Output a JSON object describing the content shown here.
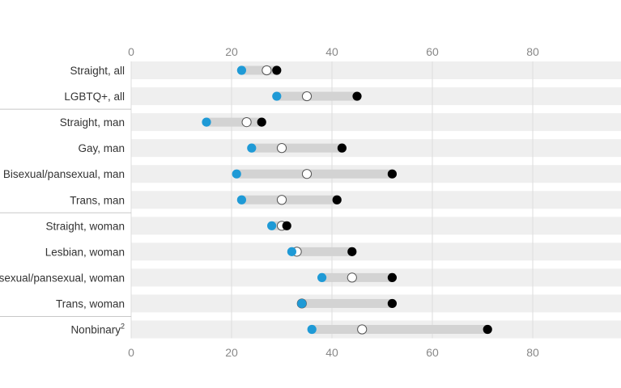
{
  "chart_data": {
    "type": "dot",
    "title": "",
    "xlabel": "",
    "ylabel": "",
    "xlim": [
      0,
      98
    ],
    "x_ticks": [
      0,
      20,
      40,
      60,
      80
    ],
    "grid": true,
    "legend": "none",
    "series_colors": {
      "blue": "#1f9ad6",
      "white": "#ffffff",
      "black": "#000000"
    },
    "categories": [
      {
        "label": "Straight, all",
        "blue": 22,
        "white": 27,
        "black": 29
      },
      {
        "label": "LGBTQ+, all",
        "blue": 29,
        "white": 35,
        "black": 45
      },
      {
        "label": "Straight, man",
        "blue": 15,
        "white": 23,
        "black": 26
      },
      {
        "label": "Gay, man",
        "blue": 24,
        "white": 30,
        "black": 42
      },
      {
        "label": "Bisexual/pansexual, man",
        "blue": 21,
        "white": 35,
        "black": 52
      },
      {
        "label": "Trans, man",
        "blue": 22,
        "white": 30,
        "black": 41
      },
      {
        "label": "Straight, woman",
        "blue": 28,
        "white": 30,
        "black": 31
      },
      {
        "label": "Lesbian, woman",
        "blue": 32,
        "white": 33,
        "black": 44
      },
      {
        "label": "Bisexual/pansexual, woman",
        "blue": 38,
        "white": 44,
        "black": 52
      },
      {
        "label": "Trans, woman",
        "blue": 34,
        "white": 34,
        "black": 52
      },
      {
        "label": "Nonbinary",
        "superscript": "2",
        "blue": 36,
        "white": 46,
        "black": 71
      }
    ],
    "group_dividers_after": [
      1,
      5,
      9
    ]
  }
}
